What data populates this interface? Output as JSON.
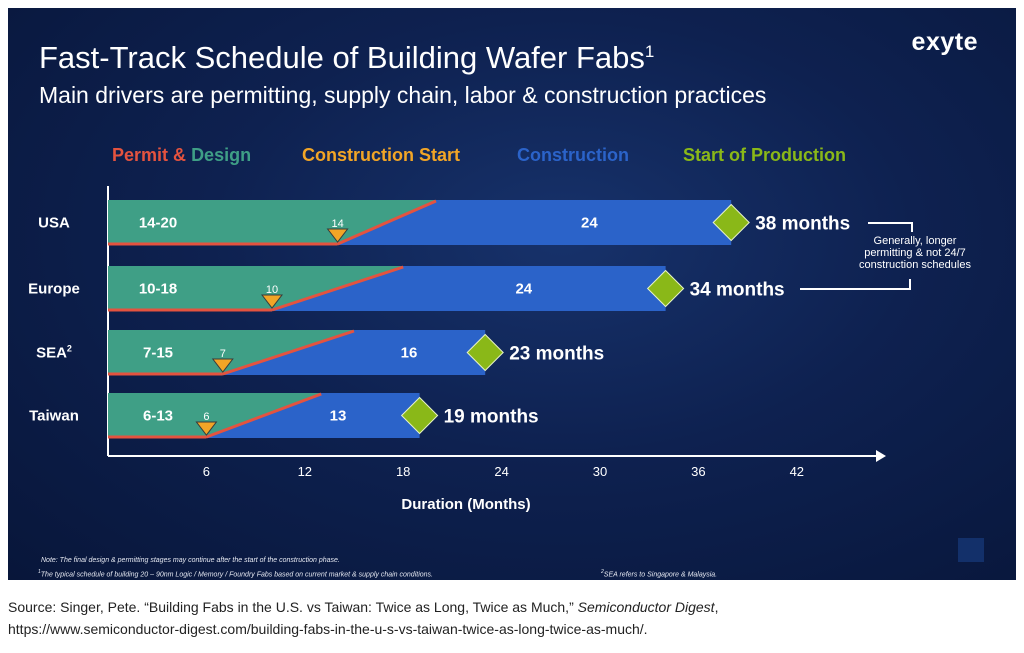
{
  "title": "Fast-Track Schedule of Building Wafer Fabs",
  "title_sup": "1",
  "subtitle": "Main drivers are permitting, supply chain, labor & construction practices",
  "logo": "exyte",
  "legend": {
    "permit": "Permit",
    "amp": "&",
    "design": "Design",
    "construction_start": "Construction Start",
    "construction": "Construction",
    "start_production": "Start of Production"
  },
  "colors": {
    "permit_red": "#e4533f",
    "design_green": "#3f9f86",
    "construction_start_orange": "#f2a526",
    "construction_blue": "#2b63c9",
    "production_green": "#8ab818"
  },
  "chart_data": {
    "type": "bar",
    "categories": [
      "USA",
      "Europe",
      "SEA",
      "Taiwan"
    ],
    "category_sup": [
      "",
      "",
      "2",
      ""
    ],
    "permit_design_labels": [
      "14-20",
      "10-18",
      "7-15",
      "6-13"
    ],
    "permit_design_start_months": [
      14,
      10,
      7,
      6
    ],
    "permit_design_end_months": [
      20,
      18,
      15,
      13
    ],
    "construction_start_labels": [
      "14",
      "10",
      "7",
      "6"
    ],
    "construction_months": [
      24,
      24,
      16,
      13
    ],
    "construction_labels": [
      "24",
      "24",
      "16",
      "13"
    ],
    "total_months": [
      38,
      34,
      23,
      19
    ],
    "total_labels": [
      "38 months",
      "34 months",
      "23 months",
      "19 months"
    ],
    "x_ticks": [
      "6",
      "12",
      "18",
      "24",
      "30",
      "36",
      "42"
    ],
    "xlabel": "Duration (Months)",
    "xlim": [
      0,
      47
    ],
    "annotation": [
      "Generally, longer",
      "permitting & not 24/7",
      "construction schedules"
    ]
  },
  "notes": {
    "note1": "Note: The final design & permitting stages may continue after the start of the construction phase.",
    "note2_sup": "1",
    "note2": "The typical schedule of building 20 – 90nm Logic / Memory / Foundry Fabs based on current market & supply chain conditions.",
    "note3_sup": "2",
    "note3": "SEA refers to Singapore & Malaysia."
  },
  "source": {
    "prefix": "Source: Singer, Pete. “Building Fabs in the U.S. vs Taiwan: Twice as Long, Twice as Much,” ",
    "publication": "Semiconductor Digest",
    "suffix": ",",
    "url": "https://www.semiconductor-digest.com/building-fabs-in-the-u-s-vs-taiwan-twice-as-long-twice-as-much/."
  }
}
